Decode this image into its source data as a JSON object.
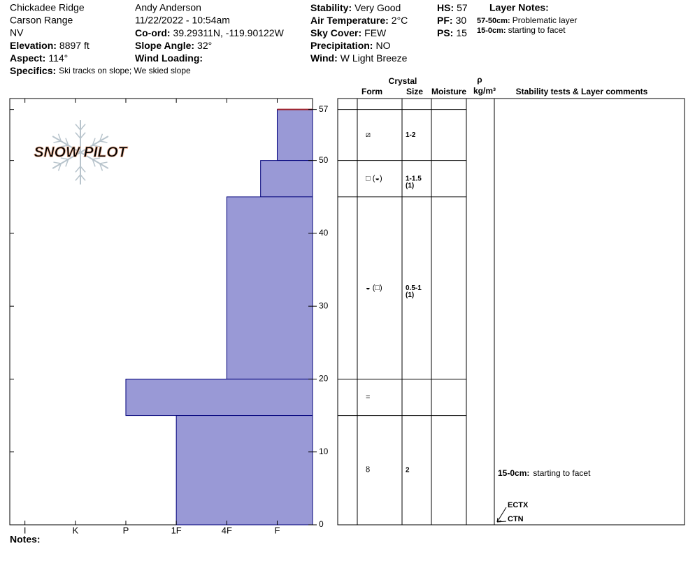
{
  "header": {
    "location": "Chickadee Ridge",
    "range": "Carson Range",
    "state": "NV",
    "elevation": {
      "label": "Elevation:",
      "value": "8897 ft"
    },
    "aspect": {
      "label": "Aspect:",
      "value": "114°"
    },
    "specifics": {
      "label": "Specifics:",
      "value": "Ski tracks on slope; We skied slope"
    },
    "observer": "Andy Anderson",
    "datetime": "11/22/2022 - 10:54am",
    "coord": {
      "label": "Co-ord:",
      "value": "39.29311N, -119.90122W"
    },
    "slope_angle": {
      "label": "Slope Angle:",
      "value": "32°"
    },
    "wind_loading": {
      "label": "Wind Loading:"
    },
    "stability": {
      "label": "Stability:",
      "value": "Very Good"
    },
    "air_temp": {
      "label": "Air Temperature:",
      "value": "2°C"
    },
    "sky_cover": {
      "label": "Sky Cover:",
      "value": "FEW"
    },
    "precipitation": {
      "label": "Precipitation:",
      "value": "NO"
    },
    "wind": {
      "label": "Wind:",
      "value": "W Light Breeze"
    },
    "hs": {
      "label": "HS:",
      "value": "57"
    },
    "pf": {
      "label": "PF:",
      "value": "30"
    },
    "ps": {
      "label": "PS:",
      "value": "15"
    },
    "layer_notes": {
      "title": "Layer Notes:",
      "items": [
        {
          "range": "57-50cm:",
          "text": "Problematic layer"
        },
        {
          "range": "15-0cm:",
          "text": "starting to facet"
        }
      ]
    }
  },
  "logo": "SNOW PILOT",
  "chart_data": {
    "type": "hardness_profile",
    "xlim": [
      6.3,
      0.3
    ],
    "xticks": [
      {
        "value": 6,
        "label": "I"
      },
      {
        "value": 5,
        "label": "K"
      },
      {
        "value": 4,
        "label": "P"
      },
      {
        "value": 3,
        "label": "1F"
      },
      {
        "value": 2,
        "label": "4F"
      },
      {
        "value": 1,
        "label": "F"
      }
    ],
    "ylim": [
      0,
      58.5
    ],
    "yticks": [
      0,
      10,
      20,
      30,
      40,
      50,
      57
    ],
    "color": "#9999d6",
    "layers": [
      {
        "top": 57,
        "bottom": 50,
        "hardness": 1
      },
      {
        "top": 50,
        "bottom": 45,
        "hardness": 1.33
      },
      {
        "top": 45,
        "bottom": 20,
        "hardness": 2
      },
      {
        "top": 20,
        "bottom": 15,
        "hardness": 4
      },
      {
        "top": 15,
        "bottom": 0,
        "hardness": 3
      }
    ]
  },
  "crystal_table": {
    "headers": {
      "crystal": "Crystal",
      "form": "Form",
      "size": "Size",
      "moisture": "Moisture",
      "rho": "ρ",
      "density": "kg/m³",
      "comments": "Stability tests & Layer comments"
    },
    "layers": [
      {
        "form": "⧄",
        "size": [
          "1-2"
        ]
      },
      {
        "form": "□ (◒)",
        "size": [
          "1-1.5",
          "(1)"
        ]
      },
      {
        "form": "◒ (□)",
        "size": [
          "0.5-1",
          "(1)"
        ]
      },
      {
        "form": "=",
        "size": []
      },
      {
        "form": "ȣ",
        "size": [
          "2"
        ]
      }
    ],
    "comment": {
      "range": "15-0cm:",
      "text": "starting to facet"
    },
    "tests": [
      "ECTX",
      "CTN"
    ]
  },
  "notes": {
    "label": "Notes:"
  }
}
